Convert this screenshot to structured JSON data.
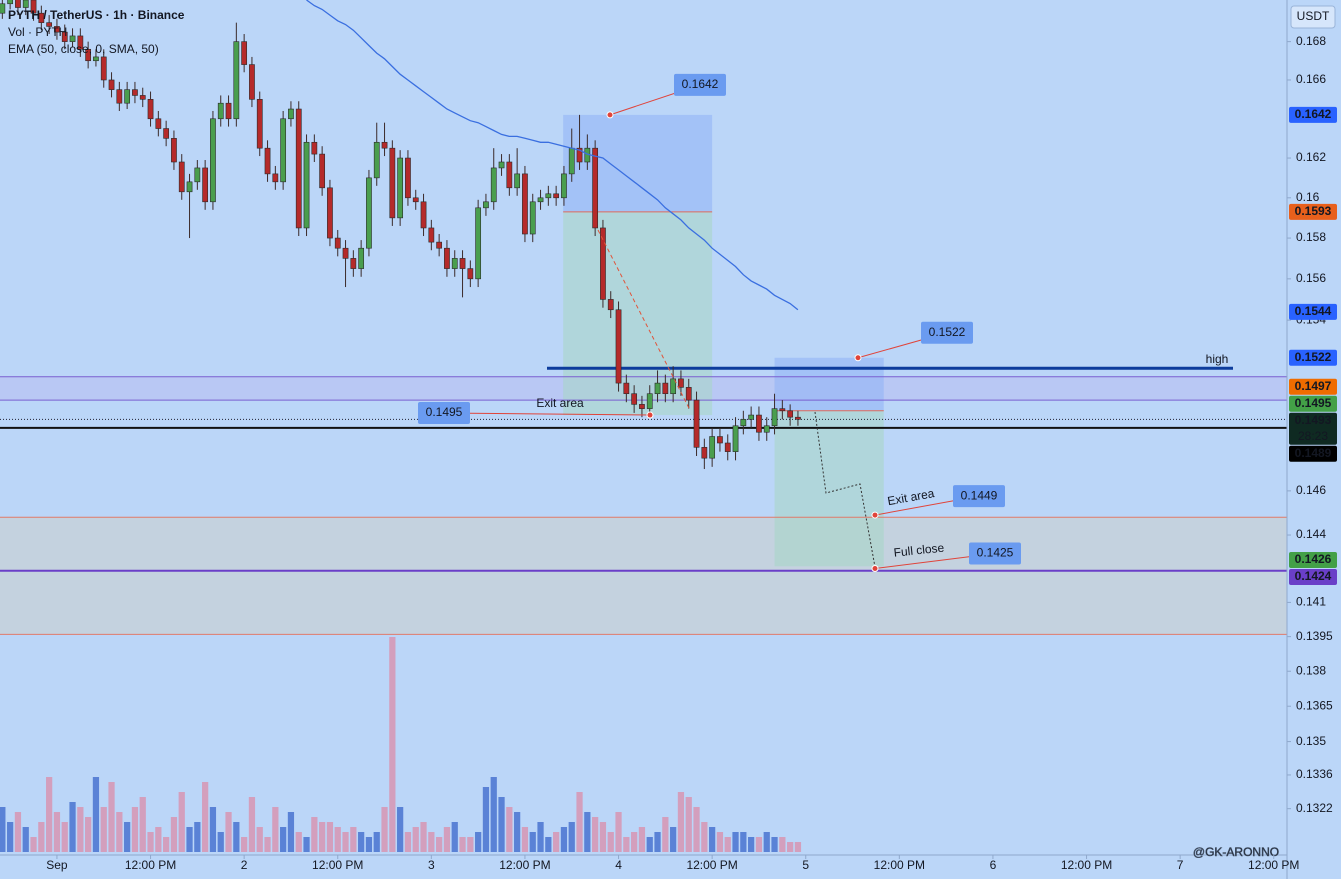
{
  "chart_data": {
    "type": "candlestick",
    "title": "PYTH / TetherUS · 1h · Binance",
    "volume_label": "Vol · PYTH",
    "currency": "USDT",
    "watermark": "@GK-ARONNO",
    "log_scale": true,
    "ylim": [
      0.1303,
      0.1702
    ],
    "yticks": [
      0.168,
      0.166,
      0.162,
      0.16,
      0.158,
      0.156,
      0.154,
      0.146,
      0.144,
      0.141,
      0.1395,
      0.138,
      0.1365,
      0.135,
      0.1336,
      0.1322
    ],
    "xlim": [
      -0.3,
      164.7
    ],
    "xticks": [
      {
        "value": 7,
        "label": "Sep"
      },
      {
        "value": 19,
        "label": "12:00 PM"
      },
      {
        "value": 31,
        "label": "2"
      },
      {
        "value": 43,
        "label": "12:00 PM"
      },
      {
        "value": 55,
        "label": "3"
      },
      {
        "value": 67,
        "label": "12:00 PM"
      },
      {
        "value": 79,
        "label": "4"
      },
      {
        "value": 91,
        "label": "12:00 PM"
      },
      {
        "value": 103,
        "label": "5"
      },
      {
        "value": 115,
        "label": "12:00 PM"
      },
      {
        "value": 127,
        "label": "6"
      },
      {
        "value": 139,
        "label": "12:00 PM"
      },
      {
        "value": 151,
        "label": "7"
      },
      {
        "value": 163,
        "label": "12:00 PM"
      }
    ],
    "up_color": "#4a9e4e",
    "down_color": "#b52a2a",
    "ohlc": [
      [
        0.1695,
        0.1706,
        0.1692,
        0.17
      ],
      [
        0.17,
        0.171,
        0.1697,
        0.1705
      ],
      [
        0.1705,
        0.1708,
        0.1694,
        0.1698
      ],
      [
        0.1698,
        0.1706,
        0.1694,
        0.1702
      ],
      [
        0.1702,
        0.1705,
        0.1691,
        0.1695
      ],
      [
        0.1695,
        0.1699,
        0.1686,
        0.169
      ],
      [
        0.169,
        0.1694,
        0.1684,
        0.1688
      ],
      [
        0.1688,
        0.1692,
        0.1681,
        0.1685
      ],
      [
        0.1685,
        0.1689,
        0.1676,
        0.168
      ],
      [
        0.168,
        0.1687,
        0.1677,
        0.1683
      ],
      [
        0.1683,
        0.1687,
        0.1672,
        0.1676
      ],
      [
        0.1676,
        0.168,
        0.1666,
        0.167
      ],
      [
        0.167,
        0.1676,
        0.1667,
        0.1672
      ],
      [
        0.1672,
        0.1676,
        0.1656,
        0.166
      ],
      [
        0.166,
        0.1664,
        0.1651,
        0.1655
      ],
      [
        0.1655,
        0.1659,
        0.1644,
        0.1648
      ],
      [
        0.1648,
        0.1659,
        0.1645,
        0.1655
      ],
      [
        0.1655,
        0.1659,
        0.1648,
        0.1652
      ],
      [
        0.1652,
        0.1656,
        0.1646,
        0.165
      ],
      [
        0.165,
        0.1654,
        0.1636,
        0.164
      ],
      [
        0.164,
        0.1644,
        0.1631,
        0.1635
      ],
      [
        0.1635,
        0.1639,
        0.1626,
        0.163
      ],
      [
        0.163,
        0.1634,
        0.1614,
        0.1618
      ],
      [
        0.1618,
        0.1622,
        0.1599,
        0.1603
      ],
      [
        0.1603,
        0.1612,
        0.158,
        0.1608
      ],
      [
        0.1608,
        0.1619,
        0.1604,
        0.1615
      ],
      [
        0.1615,
        0.1619,
        0.1594,
        0.1598
      ],
      [
        0.1598,
        0.1644,
        0.1594,
        0.164
      ],
      [
        0.164,
        0.1652,
        0.1636,
        0.1648
      ],
      [
        0.1648,
        0.1652,
        0.1636,
        0.164
      ],
      [
        0.164,
        0.169,
        0.1636,
        0.168
      ],
      [
        0.168,
        0.1684,
        0.1664,
        0.1668
      ],
      [
        0.1668,
        0.1672,
        0.1646,
        0.165
      ],
      [
        0.165,
        0.1654,
        0.1621,
        0.1625
      ],
      [
        0.1625,
        0.1629,
        0.1608,
        0.1612
      ],
      [
        0.1612,
        0.1616,
        0.1604,
        0.1608
      ],
      [
        0.1608,
        0.1644,
        0.1604,
        0.164
      ],
      [
        0.164,
        0.1649,
        0.1636,
        0.1645
      ],
      [
        0.1645,
        0.1649,
        0.1581,
        0.1585
      ],
      [
        0.1585,
        0.1632,
        0.1581,
        0.1628
      ],
      [
        0.1628,
        0.1632,
        0.1618,
        0.1622
      ],
      [
        0.1622,
        0.1626,
        0.1601,
        0.1605
      ],
      [
        0.1605,
        0.1609,
        0.1576,
        0.158
      ],
      [
        0.158,
        0.1584,
        0.1571,
        0.1575
      ],
      [
        0.1575,
        0.1579,
        0.1556,
        0.157
      ],
      [
        0.157,
        0.1574,
        0.1561,
        0.1565
      ],
      [
        0.1565,
        0.1579,
        0.1561,
        0.1575
      ],
      [
        0.1575,
        0.1614,
        0.1571,
        0.161
      ],
      [
        0.161,
        0.1638,
        0.1606,
        0.1628
      ],
      [
        0.1628,
        0.1638,
        0.1621,
        0.1625
      ],
      [
        0.1625,
        0.1629,
        0.1586,
        0.159
      ],
      [
        0.159,
        0.1624,
        0.1586,
        0.162
      ],
      [
        0.162,
        0.1624,
        0.1596,
        0.16
      ],
      [
        0.16,
        0.1604,
        0.1594,
        0.1598
      ],
      [
        0.1598,
        0.1602,
        0.1581,
        0.1585
      ],
      [
        0.1585,
        0.1589,
        0.1574,
        0.1578
      ],
      [
        0.1578,
        0.1582,
        0.1571,
        0.1575
      ],
      [
        0.1575,
        0.1579,
        0.1561,
        0.1565
      ],
      [
        0.1565,
        0.1574,
        0.1561,
        0.157
      ],
      [
        0.157,
        0.1574,
        0.1551,
        0.1565
      ],
      [
        0.1565,
        0.1569,
        0.1556,
        0.156
      ],
      [
        0.156,
        0.1599,
        0.1556,
        0.1595
      ],
      [
        0.1595,
        0.1602,
        0.1591,
        0.1598
      ],
      [
        0.1598,
        0.1625,
        0.1594,
        0.1615
      ],
      [
        0.1615,
        0.1622,
        0.1611,
        0.1618
      ],
      [
        0.1618,
        0.1622,
        0.1601,
        0.1605
      ],
      [
        0.1605,
        0.1625,
        0.1601,
        0.1612
      ],
      [
        0.1612,
        0.1616,
        0.1578,
        0.1582
      ],
      [
        0.1582,
        0.1602,
        0.1578,
        0.1598
      ],
      [
        0.1598,
        0.1604,
        0.1594,
        0.16
      ],
      [
        0.16,
        0.1606,
        0.1596,
        0.1602
      ],
      [
        0.1602,
        0.1606,
        0.1596,
        0.16
      ],
      [
        0.16,
        0.1616,
        0.1596,
        0.1612
      ],
      [
        0.1612,
        0.1635,
        0.1608,
        0.1625
      ],
      [
        0.1625,
        0.1642,
        0.1614,
        0.1618
      ],
      [
        0.1618,
        0.1632,
        0.1614,
        0.1625
      ],
      [
        0.1625,
        0.1629,
        0.1581,
        0.1585
      ],
      [
        0.1585,
        0.1589,
        0.1546,
        0.155
      ],
      [
        0.155,
        0.1554,
        0.1541,
        0.1545
      ],
      [
        0.1545,
        0.1549,
        0.1506,
        0.151
      ],
      [
        0.151,
        0.1514,
        0.1501,
        0.1505
      ],
      [
        0.1505,
        0.1509,
        0.1496,
        0.15
      ],
      [
        0.15,
        0.1504,
        0.1494,
        0.1498
      ],
      [
        0.1498,
        0.1509,
        0.1494,
        0.1505
      ],
      [
        0.1505,
        0.1516,
        0.1501,
        0.151
      ],
      [
        0.151,
        0.1514,
        0.1501,
        0.1505
      ],
      [
        0.1505,
        0.1518,
        0.1501,
        0.1512
      ],
      [
        0.1512,
        0.1516,
        0.1504,
        0.1508
      ],
      [
        0.1508,
        0.1512,
        0.1498,
        0.1502
      ],
      [
        0.1502,
        0.1506,
        0.1476,
        0.148
      ],
      [
        0.148,
        0.1484,
        0.147,
        0.1475
      ],
      [
        0.1475,
        0.1489,
        0.1471,
        0.1485
      ],
      [
        0.1485,
        0.1489,
        0.1478,
        0.1482
      ],
      [
        0.1482,
        0.1486,
        0.1474,
        0.1478
      ],
      [
        0.1478,
        0.1494,
        0.1474,
        0.149
      ],
      [
        0.149,
        0.1497,
        0.1486,
        0.1493
      ],
      [
        0.1493,
        0.1499,
        0.1489,
        0.1495
      ],
      [
        0.1495,
        0.1499,
        0.1483,
        0.1487
      ],
      [
        0.1487,
        0.1494,
        0.1483,
        0.149
      ],
      [
        0.149,
        0.1505,
        0.1486,
        0.1498
      ],
      [
        0.1498,
        0.1502,
        0.1493,
        0.1497
      ],
      [
        0.1497,
        0.15,
        0.149,
        0.1494
      ],
      [
        0.1494,
        0.1497,
        0.149,
        0.1493
      ]
    ],
    "volume": [
      45,
      30,
      40,
      25,
      15,
      30,
      75,
      40,
      30,
      50,
      45,
      35,
      75,
      45,
      70,
      40,
      30,
      45,
      55,
      20,
      25,
      15,
      35,
      60,
      25,
      30,
      70,
      45,
      20,
      40,
      30,
      15,
      55,
      25,
      15,
      45,
      25,
      40,
      20,
      15,
      35,
      30,
      30,
      25,
      20,
      25,
      20,
      15,
      20,
      45,
      215,
      45,
      20,
      25,
      30,
      20,
      15,
      25,
      30,
      15,
      15,
      20,
      65,
      75,
      55,
      45,
      40,
      25,
      20,
      30,
      15,
      20,
      25,
      30,
      60,
      40,
      35,
      30,
      20,
      40,
      15,
      20,
      25,
      15,
      20,
      35,
      25,
      60,
      55,
      45,
      30,
      25,
      20,
      15,
      20,
      20,
      15,
      15,
      20,
      15,
      15,
      10,
      10
    ],
    "vlim": [
      0,
      230
    ],
    "volume_colors": {
      "up": "#5a82d6",
      "down": "#d39fbd"
    },
    "ema": {
      "name": "EMA (50, close, 0, SMA, 50)",
      "color": "#3a6fe0",
      "values": [
        null,
        null,
        null,
        null,
        null,
        null,
        null,
        null,
        null,
        null,
        null,
        null,
        null,
        null,
        null,
        null,
        null,
        null,
        null,
        null,
        null,
        null,
        null,
        null,
        null,
        null,
        null,
        null,
        null,
        null,
        null,
        null,
        null,
        null,
        null,
        null,
        null,
        null,
        null,
        0.1702,
        0.1699,
        0.1697,
        0.1694,
        0.1691,
        0.1689,
        0.1686,
        0.1682,
        0.1678,
        0.1674,
        0.1671,
        0.1667,
        0.1663,
        0.166,
        0.1657,
        0.1654,
        0.1651,
        0.1648,
        0.1645,
        0.1643,
        0.1641,
        0.1639,
        0.1638,
        0.1636,
        0.1634,
        0.1632,
        0.1631,
        0.1631,
        0.163,
        0.1629,
        0.1628,
        0.1628,
        0.1627,
        0.1626,
        0.1625,
        0.1624,
        0.1622,
        0.1621,
        0.162,
        0.1617,
        0.1614,
        0.1611,
        0.1608,
        0.1605,
        0.1602,
        0.1599,
        0.1595,
        0.1592,
        0.1589,
        0.1585,
        0.1582,
        0.1579,
        0.1575,
        0.1572,
        0.1569,
        0.1566,
        0.1562,
        0.1559,
        0.1557,
        0.1555,
        0.1552,
        0.155,
        0.1548,
        0.1545
      ]
    },
    "positions": [
      {
        "stop": 0.1642,
        "entry": 0.1593,
        "target": 0.1495
      },
      {
        "stop": 0.1522,
        "entry": 0.1497,
        "target": 0.1426
      }
    ],
    "levels": [
      {
        "value": 0.1517,
        "color": "#0d3c9c",
        "width": 3
      },
      {
        "value": 0.1513,
        "color": "#7a5fd0",
        "width": 1
      },
      {
        "value": 0.1502,
        "color": "#7a5fd0",
        "width": 1
      },
      {
        "value": 0.1489,
        "color": "#111111",
        "width": 2
      },
      {
        "value": 0.1448,
        "color": "#e07a6a",
        "width": 1
      },
      {
        "value": 0.1424,
        "color": "#6a3fc8",
        "width": 2
      },
      {
        "value": 0.1396,
        "color": "#e07a6a",
        "width": 1
      }
    ],
    "callouts": [
      0.1642,
      0.1522,
      0.1495,
      0.1449,
      0.1425
    ],
    "annotations": [
      "Exit area",
      "Exit area",
      "Full close",
      "high"
    ],
    "price_labels": [
      {
        "value": 0.1642,
        "color": "#2962ff"
      },
      {
        "value": 0.1593,
        "color": "#e8601c"
      },
      {
        "value": 0.1544,
        "color": "#2962ff"
      },
      {
        "value": 0.1522,
        "color": "#2962ff"
      },
      {
        "value": 0.1497,
        "color": "#ef6c00"
      },
      {
        "value": 0.1495,
        "color": "#43a047"
      },
      {
        "value": 0.1493,
        "color": "#0f2a22",
        "countdown": "28:23"
      },
      {
        "value": 0.1489,
        "color": "#000000"
      },
      {
        "value": 0.1426,
        "color": "#43a047"
      },
      {
        "value": 0.1424,
        "color": "#6a3fc8"
      }
    ]
  }
}
